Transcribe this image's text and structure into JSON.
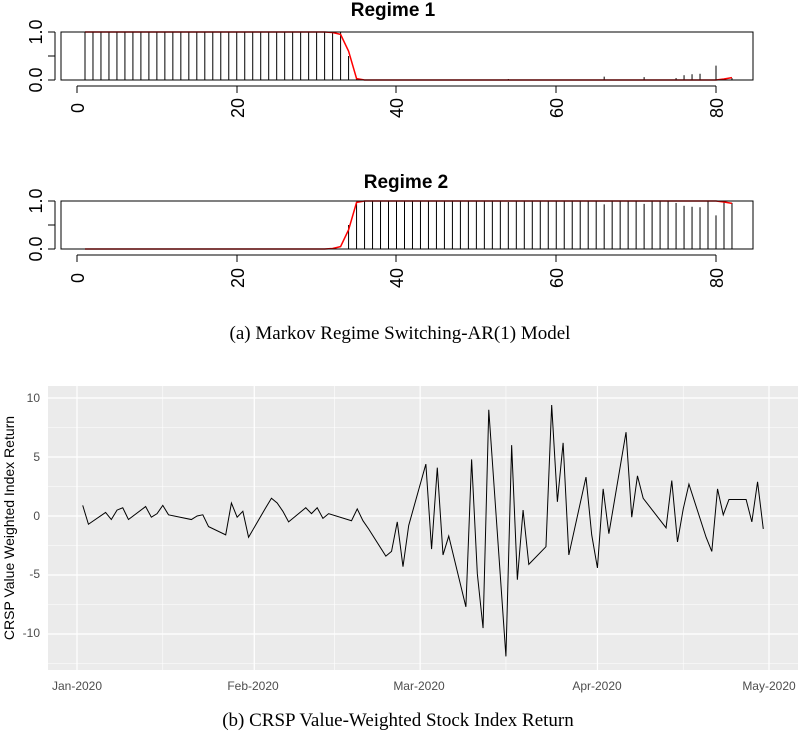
{
  "chart_data": [
    {
      "type": "bar",
      "title": "Regime 1",
      "xlim": [
        -4,
        85
      ],
      "ylim": [
        0,
        1
      ],
      "xticks": [
        "0",
        "20",
        "40",
        "60",
        "80"
      ],
      "yticks": [
        "0.0",
        "0.5",
        "1.0"
      ],
      "series": [
        {
          "name": "",
          "type": "bar",
          "x_start": 1,
          "x_end": 82,
          "values": [
            1,
            1,
            1,
            1,
            1,
            1,
            1,
            1,
            1,
            1,
            1,
            1,
            1,
            1,
            1,
            1,
            1,
            1,
            1,
            1,
            1,
            1,
            1,
            1,
            1,
            1,
            1,
            1,
            1,
            1,
            1,
            1,
            1,
            0.5,
            0.02,
            0,
            0,
            0,
            0,
            0,
            0,
            0,
            0,
            0,
            0,
            0,
            0,
            0,
            0,
            0,
            0,
            0,
            0,
            0.02,
            0,
            0,
            0,
            0,
            0,
            0,
            0,
            0,
            0,
            0,
            0,
            0.07,
            0,
            0,
            0,
            0,
            0.06,
            0,
            0,
            0,
            0.04,
            0.1,
            0.12,
            0.13,
            0,
            0.3,
            0,
            0.04
          ]
        },
        {
          "name": "",
          "type": "line",
          "color": "#ff0000",
          "x_start": 1,
          "x_end": 82,
          "values": [
            1,
            1,
            1,
            1,
            1,
            1,
            1,
            1,
            1,
            1,
            1,
            1,
            1,
            1,
            1,
            1,
            1,
            1,
            1,
            1,
            1,
            1,
            1,
            1,
            1,
            1,
            1,
            1,
            1,
            1,
            1,
            0.99,
            0.95,
            0.6,
            0.03,
            0,
            0,
            0,
            0,
            0,
            0,
            0,
            0,
            0,
            0,
            0,
            0,
            0,
            0,
            0,
            0,
            0,
            0,
            0,
            0,
            0,
            0,
            0,
            0,
            0,
            0,
            0,
            0,
            0,
            0,
            0,
            0,
            0,
            0,
            0,
            0,
            0,
            0,
            0,
            0,
            0,
            0,
            0,
            0,
            0,
            0.02,
            0.05
          ]
        }
      ]
    },
    {
      "type": "bar",
      "title": "Regime 2",
      "xlim": [
        -4,
        85
      ],
      "ylim": [
        0,
        1
      ],
      "xticks": [
        "0",
        "20",
        "40",
        "60",
        "80"
      ],
      "yticks": [
        "0.0",
        "0.5",
        "1.0"
      ],
      "series": [
        {
          "name": "",
          "type": "bar",
          "x_start": 1,
          "x_end": 82,
          "values": [
            0,
            0,
            0,
            0,
            0,
            0,
            0,
            0,
            0,
            0,
            0,
            0,
            0,
            0,
            0,
            0,
            0,
            0,
            0,
            0,
            0,
            0,
            0,
            0,
            0,
            0,
            0,
            0,
            0,
            0,
            0,
            0,
            0,
            0.5,
            0.98,
            1,
            1,
            1,
            1,
            1,
            1,
            1,
            1,
            1,
            1,
            1,
            1,
            1,
            1,
            1,
            1,
            1,
            1,
            0.98,
            1,
            1,
            1,
            1,
            1,
            1,
            1,
            1,
            1,
            1,
            1,
            0.93,
            1,
            1,
            1,
            1,
            0.94,
            1,
            1,
            1,
            0.96,
            0.9,
            0.88,
            0.87,
            1,
            0.7,
            1,
            0.96
          ]
        },
        {
          "name": "",
          "type": "line",
          "color": "#ff0000",
          "x_start": 1,
          "x_end": 82,
          "values": [
            0,
            0,
            0,
            0,
            0,
            0,
            0,
            0,
            0,
            0,
            0,
            0,
            0,
            0,
            0,
            0,
            0,
            0,
            0,
            0,
            0,
            0,
            0,
            0,
            0,
            0,
            0,
            0,
            0,
            0,
            0,
            0.01,
            0.05,
            0.4,
            0.97,
            1,
            1,
            1,
            1,
            1,
            1,
            1,
            1,
            1,
            1,
            1,
            1,
            1,
            1,
            1,
            1,
            1,
            1,
            1,
            1,
            1,
            1,
            1,
            1,
            1,
            1,
            1,
            1,
            1,
            1,
            1,
            1,
            1,
            1,
            1,
            1,
            1,
            1,
            1,
            1,
            1,
            1,
            1,
            1,
            1,
            0.98,
            0.95
          ]
        }
      ]
    },
    {
      "type": "line",
      "xlabel": "",
      "ylabel": "CRSP Value Weighted Index Return",
      "ylim": [
        -13,
        10.5
      ],
      "yticks": [
        "10",
        "5",
        "0",
        "-5",
        "-10"
      ],
      "xticks": [
        "Jan-2020",
        "Feb-2020",
        "Mar-2020",
        "Apr-2020",
        "May-2020"
      ],
      "x": [
        "2020-01-02",
        "2020-01-03",
        "2020-01-06",
        "2020-01-07",
        "2020-01-08",
        "2020-01-09",
        "2020-01-10",
        "2020-01-13",
        "2020-01-14",
        "2020-01-15",
        "2020-01-16",
        "2020-01-17",
        "2020-01-21",
        "2020-01-22",
        "2020-01-23",
        "2020-01-24",
        "2020-01-27",
        "2020-01-28",
        "2020-01-29",
        "2020-01-30",
        "2020-01-31",
        "2020-02-03",
        "2020-02-04",
        "2020-02-05",
        "2020-02-06",
        "2020-02-07",
        "2020-02-10",
        "2020-02-11",
        "2020-02-12",
        "2020-02-13",
        "2020-02-14",
        "2020-02-18",
        "2020-02-19",
        "2020-02-20",
        "2020-02-21",
        "2020-02-24",
        "2020-02-25",
        "2020-02-26",
        "2020-02-27",
        "2020-02-28",
        "2020-03-02",
        "2020-03-03",
        "2020-03-04",
        "2020-03-05",
        "2020-03-06",
        "2020-03-09",
        "2020-03-10",
        "2020-03-11",
        "2020-03-12",
        "2020-03-13",
        "2020-03-16",
        "2020-03-17",
        "2020-03-18",
        "2020-03-19",
        "2020-03-20",
        "2020-03-23",
        "2020-03-24",
        "2020-03-25",
        "2020-03-26",
        "2020-03-27",
        "2020-03-30",
        "2020-03-31",
        "2020-04-01",
        "2020-04-02",
        "2020-04-03",
        "2020-04-06",
        "2020-04-07",
        "2020-04-08",
        "2020-04-09",
        "2020-04-13",
        "2020-04-14",
        "2020-04-15",
        "2020-04-16",
        "2020-04-17",
        "2020-04-20",
        "2020-04-21",
        "2020-04-22",
        "2020-04-23",
        "2020-04-24",
        "2020-04-27",
        "2020-04-28",
        "2020-04-29",
        "2020-04-30"
      ],
      "series": [
        {
          "name": "",
          "color": "#000000",
          "values": [
            0.9,
            -0.7,
            0.3,
            -0.3,
            0.5,
            0.7,
            -0.3,
            0.8,
            -0.1,
            0.2,
            0.9,
            0.1,
            -0.3,
            0.0,
            0.1,
            -0.9,
            -1.6,
            1.1,
            -0.1,
            0.4,
            -1.8,
            0.7,
            1.5,
            1.1,
            0.4,
            -0.5,
            0.7,
            0.2,
            0.7,
            -0.2,
            0.2,
            -0.4,
            0.6,
            -0.4,
            -1.1,
            -3.4,
            -3.0,
            -0.5,
            -4.3,
            -0.8,
            4.4,
            -2.8,
            4.1,
            -3.3,
            -1.7,
            -7.7,
            4.8,
            -4.9,
            -9.5,
            9.0,
            -11.9,
            6.0,
            -5.4,
            0.5,
            -4.1,
            -2.6,
            9.4,
            1.2,
            6.2,
            -3.3,
            3.3,
            -1.6,
            -4.4,
            2.3,
            -1.5,
            7.1,
            -0.1,
            3.4,
            1.5,
            -1.0,
            3.0,
            -2.2,
            0.6,
            2.7,
            -1.8,
            -3.0,
            2.3,
            0.1,
            1.4,
            1.4,
            -0.5,
            2.9,
            -1.1
          ]
        }
      ]
    }
  ],
  "captions": {
    "a": "(a) Markov Regime Switching-AR(1) Model",
    "b": "(b) CRSP Value-Weighted Stock Index Return"
  }
}
